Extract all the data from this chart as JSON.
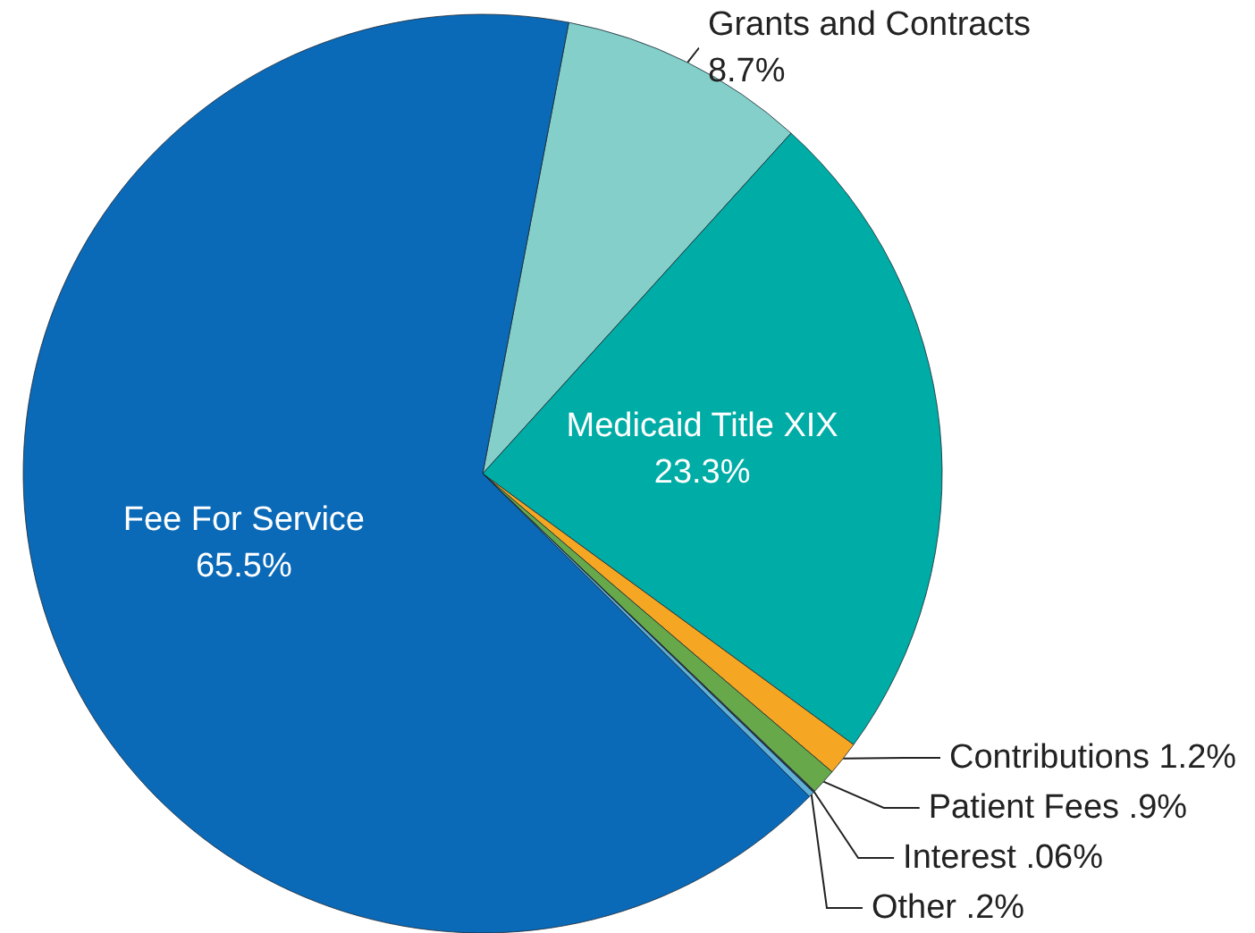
{
  "chart_data": {
    "type": "pie",
    "categories": [
      "Grants and Contracts",
      "Medicaid Title XIX",
      "Contributions",
      "Patient Fees",
      "Interest",
      "Other",
      "Fee For Service"
    ],
    "values": [
      8.7,
      23.3,
      1.2,
      0.9,
      0.06,
      0.2,
      65.5
    ],
    "value_labels": [
      "8.7%",
      "23.3%",
      "1.2%",
      ".9%",
      ".06%",
      ".2%",
      "65.5%"
    ],
    "colors": [
      "#84cfc9",
      "#00aca6",
      "#f5a623",
      "#66a84a",
      "#2a3a4a",
      "#5fb0d8",
      "#0a6ab8"
    ],
    "legend": false
  }
}
